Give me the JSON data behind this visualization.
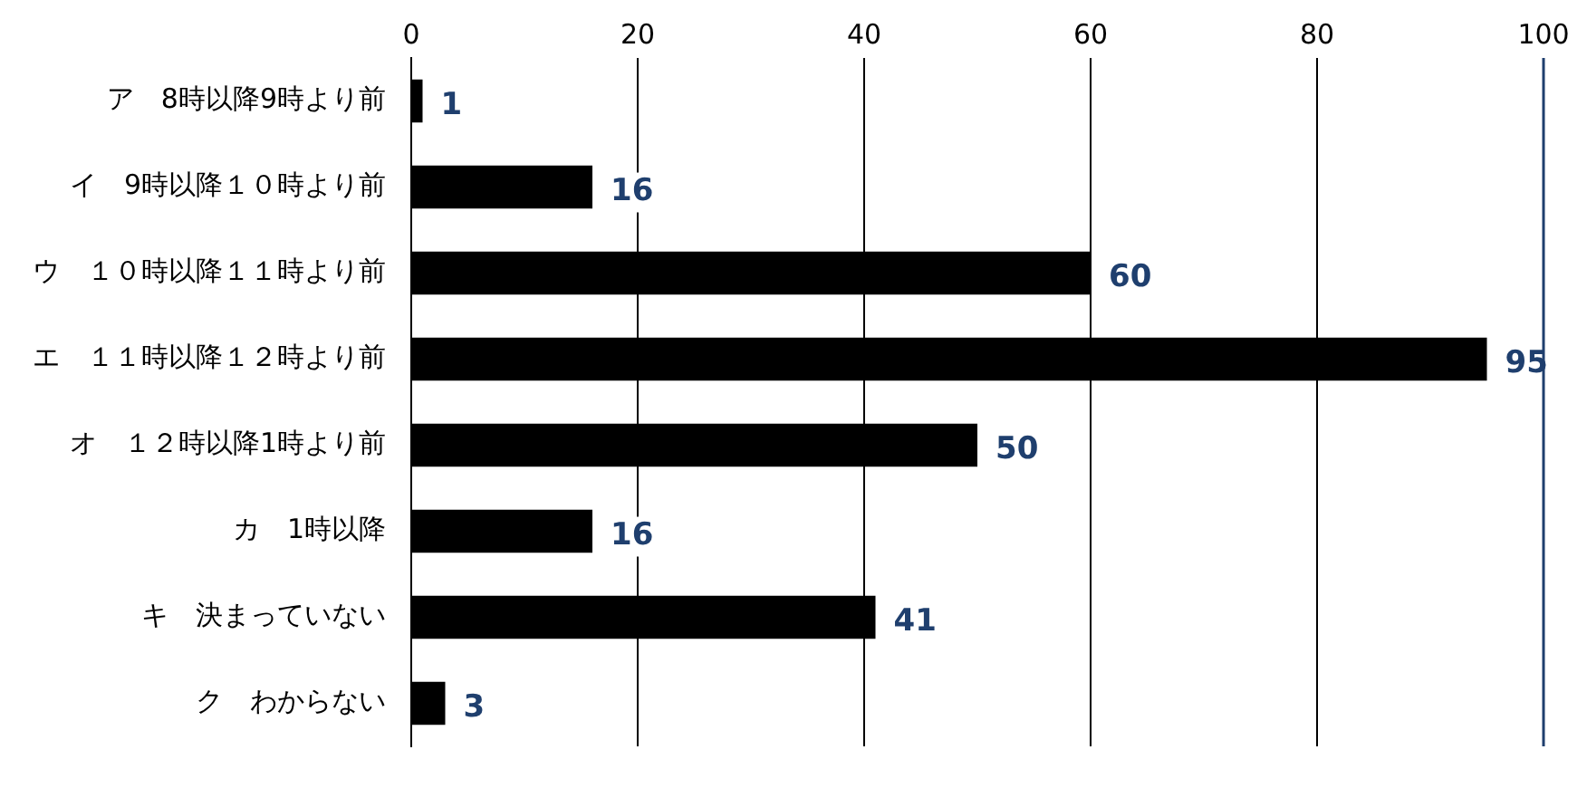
{
  "chart_data": {
    "type": "bar",
    "orientation": "horizontal",
    "categories": [
      "ア　8時以降9時より前",
      "イ　9時以降１０時より前",
      "ウ　１０時以降１１時より前",
      "エ　１１時以降１２時より前",
      "オ　１２時以降1時より前",
      "カ　1時以降",
      "キ　決まっていない",
      "ク　わからない"
    ],
    "values": [
      1,
      16,
      60,
      95,
      50,
      16,
      41,
      3
    ],
    "color": "#000000",
    "xlim": [
      0,
      100
    ],
    "xticks": [
      0,
      20,
      40,
      60,
      80,
      100
    ],
    "grid": "x",
    "legend": false,
    "data_labels": true
  }
}
